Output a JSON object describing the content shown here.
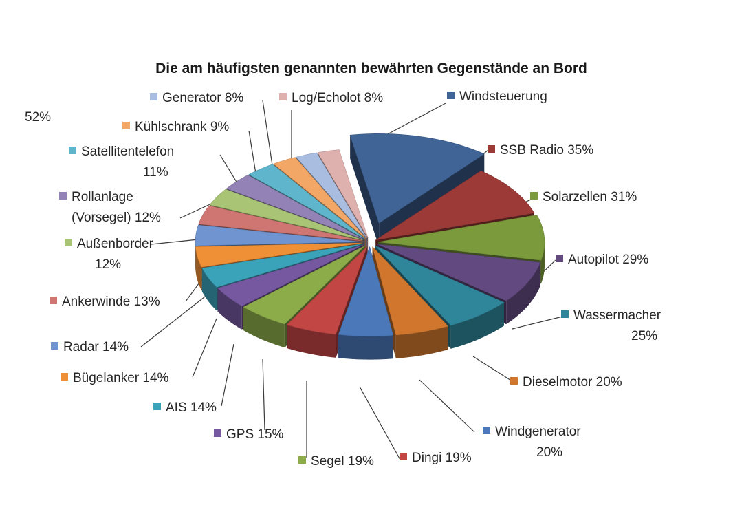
{
  "chart_data": {
    "type": "pie",
    "title": "Die am häufigsten genannten bewährten Gegenstände an Bord",
    "unit": "%",
    "slices": [
      {
        "label": "Windsteuerung",
        "value": 52,
        "text": [
          "Windsteuerung",
          "52%"
        ],
        "color": "#3f6495"
      },
      {
        "label": "SSB Radio",
        "value": 35,
        "text": [
          "SSB Radio 35%"
        ],
        "color": "#9b3a37"
      },
      {
        "label": "Solarzellen",
        "value": 31,
        "text": [
          "Solarzellen 31%"
        ],
        "color": "#7a9a3c"
      },
      {
        "label": "Autopilot",
        "value": 29,
        "text": [
          "Autopilot 29%"
        ],
        "color": "#62497f"
      },
      {
        "label": "Wassermacher",
        "value": 25,
        "text": [
          "Wassermacher",
          "25%"
        ],
        "color": "#2f8599"
      },
      {
        "label": "Dieselmotor",
        "value": 20,
        "text": [
          "Dieselmotor 20%"
        ],
        "color": "#d0772d"
      },
      {
        "label": "Windgenerator",
        "value": 20,
        "text": [
          "Windgenerator",
          "20%"
        ],
        "color": "#4a78b8"
      },
      {
        "label": "Dingi",
        "value": 19,
        "text": [
          "Dingi 19%"
        ],
        "color": "#c24643"
      },
      {
        "label": "Segel",
        "value": 19,
        "text": [
          "Segel 19%"
        ],
        "color": "#8cac4a"
      },
      {
        "label": "GPS",
        "value": 15,
        "text": [
          "GPS 15%"
        ],
        "color": "#7558a0"
      },
      {
        "label": "AIS",
        "value": 14,
        "text": [
          "AIS 14%"
        ],
        "color": "#3aa2b9"
      },
      {
        "label": "Bügelanker",
        "value": 14,
        "text": [
          "Bügelanker 14%"
        ],
        "color": "#ef9036"
      },
      {
        "label": "Radar",
        "value": 14,
        "text": [
          "Radar 14%"
        ],
        "color": "#6f94cf"
      },
      {
        "label": "Ankerwinde",
        "value": 13,
        "text": [
          "Ankerwinde 13%"
        ],
        "color": "#cf7673"
      },
      {
        "label": "Außenborder",
        "value": 12,
        "text": [
          "Außenborder",
          "12%"
        ],
        "color": "#a8c474"
      },
      {
        "label": "Rollanlage (Vorsegel)",
        "value": 12,
        "text": [
          "Rollanlage",
          "(Vorsegel) 12%"
        ],
        "color": "#9382b5"
      },
      {
        "label": "Satellitentelefon",
        "value": 11,
        "text": [
          "Satellitentelefon",
          "11%"
        ],
        "color": "#5fb6cc"
      },
      {
        "label": "Kühlschrank",
        "value": 9,
        "text": [
          "Kühlschrank 9%"
        ],
        "color": "#f3a766"
      },
      {
        "label": "Generator",
        "value": 8,
        "text": [
          "Generator 8%"
        ],
        "color": "#a9bde0"
      },
      {
        "label": "Log/Echolot",
        "value": 8,
        "text": [
          "Log/Echolot 8%"
        ],
        "color": "#deb1af"
      }
    ]
  }
}
